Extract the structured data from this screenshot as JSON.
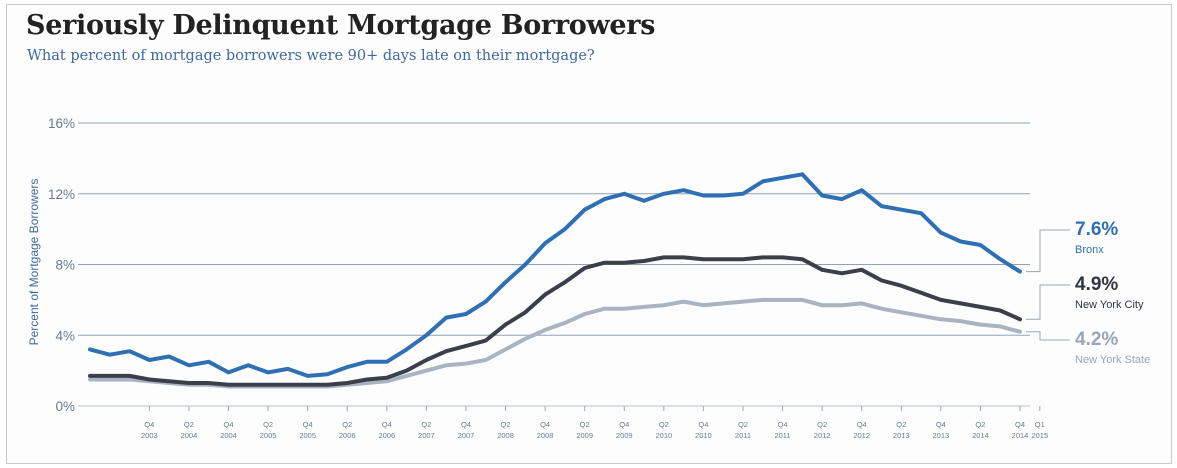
{
  "chart_data": {
    "type": "line",
    "title": "Seriously Delinquent Mortgage Borrowers",
    "subtitle": "What percent of mortgage borrowers were 90+ days late on their mortgage?",
    "ylabel": "Percent of Mortgage Borrowers",
    "ylim": [
      0,
      16
    ],
    "yticks": [
      "0%",
      "4%",
      "8%",
      "12%",
      "16%"
    ],
    "grid": true,
    "x_start": "Q1 2003",
    "x_end": "Q1 2015",
    "x_ticks": [
      {
        "q": "Q4",
        "y": "2003"
      },
      {
        "q": "Q2",
        "y": "2004"
      },
      {
        "q": "Q4",
        "y": "2004"
      },
      {
        "q": "Q2",
        "y": "2005"
      },
      {
        "q": "Q4",
        "y": "2005"
      },
      {
        "q": "Q2",
        "y": "2006"
      },
      {
        "q": "Q4",
        "y": "2006"
      },
      {
        "q": "Q2",
        "y": "2007"
      },
      {
        "q": "Q4",
        "y": "2007"
      },
      {
        "q": "Q2",
        "y": "2008"
      },
      {
        "q": "Q4",
        "y": "2008"
      },
      {
        "q": "Q2",
        "y": "2009"
      },
      {
        "q": "Q4",
        "y": "2009"
      },
      {
        "q": "Q2",
        "y": "2010"
      },
      {
        "q": "Q4",
        "y": "2010"
      },
      {
        "q": "Q2",
        "y": "2011"
      },
      {
        "q": "Q4",
        "y": "2011"
      },
      {
        "q": "Q2",
        "y": "2012"
      },
      {
        "q": "Q4",
        "y": "2012"
      },
      {
        "q": "Q2",
        "y": "2013"
      },
      {
        "q": "Q4",
        "y": "2013"
      },
      {
        "q": "Q2",
        "y": "2014"
      },
      {
        "q": "Q4",
        "y": "2014"
      },
      {
        "q": "Q1",
        "y": "2015"
      }
    ],
    "series": [
      {
        "name": "Bronx",
        "end_label": "7.6%",
        "color": "#2f6fb3",
        "values": [
          3.2,
          2.9,
          3.1,
          2.6,
          2.8,
          2.3,
          2.5,
          1.9,
          2.3,
          1.9,
          2.1,
          1.7,
          1.8,
          2.2,
          2.5,
          2.5,
          3.2,
          4.0,
          5.0,
          5.2,
          5.9,
          7.0,
          8.0,
          9.2,
          10.0,
          11.1,
          11.7,
          12.0,
          11.6,
          12.0,
          12.2,
          11.9,
          11.9,
          12.0,
          12.7,
          12.9,
          13.1,
          11.9,
          11.7,
          12.2,
          11.3,
          11.1,
          10.9,
          9.8,
          9.3,
          9.1,
          8.3,
          7.6
        ]
      },
      {
        "name": "New York City",
        "end_label": "4.9%",
        "color": "#3b3f4a",
        "values": [
          1.7,
          1.7,
          1.7,
          1.5,
          1.4,
          1.3,
          1.3,
          1.2,
          1.2,
          1.2,
          1.2,
          1.2,
          1.2,
          1.3,
          1.5,
          1.6,
          2.0,
          2.6,
          3.1,
          3.4,
          3.7,
          4.6,
          5.3,
          6.3,
          7.0,
          7.8,
          8.1,
          8.1,
          8.2,
          8.4,
          8.4,
          8.3,
          8.3,
          8.3,
          8.4,
          8.4,
          8.3,
          7.7,
          7.5,
          7.7,
          7.1,
          6.8,
          6.4,
          6.0,
          5.8,
          5.6,
          5.4,
          4.9
        ]
      },
      {
        "name": "New York State",
        "end_label": "4.2%",
        "color": "#a8b4c2",
        "values": [
          1.5,
          1.5,
          1.5,
          1.4,
          1.3,
          1.2,
          1.2,
          1.1,
          1.1,
          1.1,
          1.1,
          1.1,
          1.1,
          1.2,
          1.3,
          1.4,
          1.7,
          2.0,
          2.3,
          2.4,
          2.6,
          3.2,
          3.8,
          4.3,
          4.7,
          5.2,
          5.5,
          5.5,
          5.6,
          5.7,
          5.9,
          5.7,
          5.8,
          5.9,
          6.0,
          6.0,
          6.0,
          5.7,
          5.7,
          5.8,
          5.5,
          5.3,
          5.1,
          4.9,
          4.8,
          4.6,
          4.5,
          4.2
        ]
      }
    ]
  }
}
